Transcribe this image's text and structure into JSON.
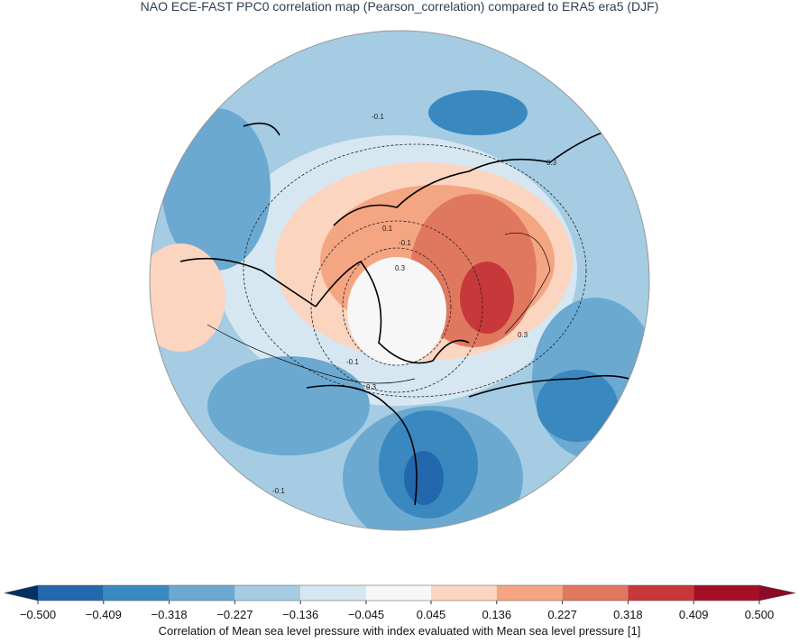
{
  "chart_data": {
    "type": "map",
    "title": "NAO ECE-FAST PPC0 correlation map (Pearson_correlation) compared to ERA5 era5 (DJF)",
    "contour_labels": [
      "-0.1",
      "-0.1",
      "0.1",
      "-0.1",
      "0.3",
      "0.3",
      "0.3",
      "0.3",
      "-0.1"
    ],
    "colorbar": {
      "label": "Correlation of Mean sea level pressure with index evaluated with Mean sea level pressure [1]",
      "ticks": [
        {
          "value": -0.5,
          "label": "−0.500"
        },
        {
          "value": -0.409,
          "label": "−0.409"
        },
        {
          "value": -0.318,
          "label": "−0.318"
        },
        {
          "value": -0.227,
          "label": "−0.227"
        },
        {
          "value": -0.136,
          "label": "−0.136"
        },
        {
          "value": -0.045,
          "label": "−0.045"
        },
        {
          "value": 0.045,
          "label": "0.045"
        },
        {
          "value": 0.136,
          "label": "0.136"
        },
        {
          "value": 0.227,
          "label": "0.227"
        },
        {
          "value": 0.318,
          "label": "0.318"
        },
        {
          "value": 0.409,
          "label": "0.409"
        },
        {
          "value": 0.5,
          "label": "0.500"
        }
      ],
      "colors": [
        "#2367ac",
        "#3a88c0",
        "#6ba9d1",
        "#a5cce3",
        "#d6e7f1",
        "#f7f7f7",
        "#fbd5c0",
        "#f4a582",
        "#e0785f",
        "#c6383a",
        "#a50f26"
      ],
      "extend_colors": [
        "#053061",
        "#8b0a25"
      ]
    }
  }
}
